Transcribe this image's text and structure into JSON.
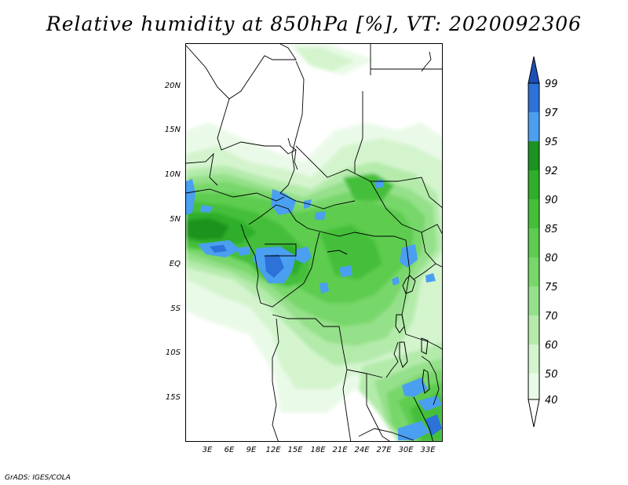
{
  "title": "Relative humidity at 850hPa [%], VT: 2020092306",
  "credit": "GrADS: IGES/COLA",
  "map": {
    "lat_ticks": [
      "20N",
      "15N",
      "10N",
      "5N",
      "EQ",
      "5S",
      "10S",
      "15S"
    ],
    "lon_ticks": [
      "3E",
      "6E",
      "9E",
      "12E",
      "15E",
      "18E",
      "21E",
      "24E",
      "27E",
      "30E",
      "33E"
    ],
    "lon_range": [
      0,
      34.5
    ],
    "lat_range": [
      -20,
      24.5
    ]
  },
  "colorbar": {
    "levels": [
      "99",
      "97",
      "95",
      "92",
      "90",
      "85",
      "80",
      "75",
      "70",
      "60",
      "50",
      "40"
    ],
    "colors": {
      "below40": "#ffffff",
      "40-50": "#eafae8",
      "50-60": "#d4f4ce",
      "60-70": "#b4ebab",
      "70-75": "#95e08a",
      "75-80": "#78d76a",
      "80-85": "#5dcc50",
      "85-90": "#44bf3a",
      "90-92": "#2fae2a",
      "92-95": "#1c931f",
      "95-97": "#4b9ff0",
      "97-99": "#2c72d8",
      "above99": "#1e4fb8"
    }
  }
}
